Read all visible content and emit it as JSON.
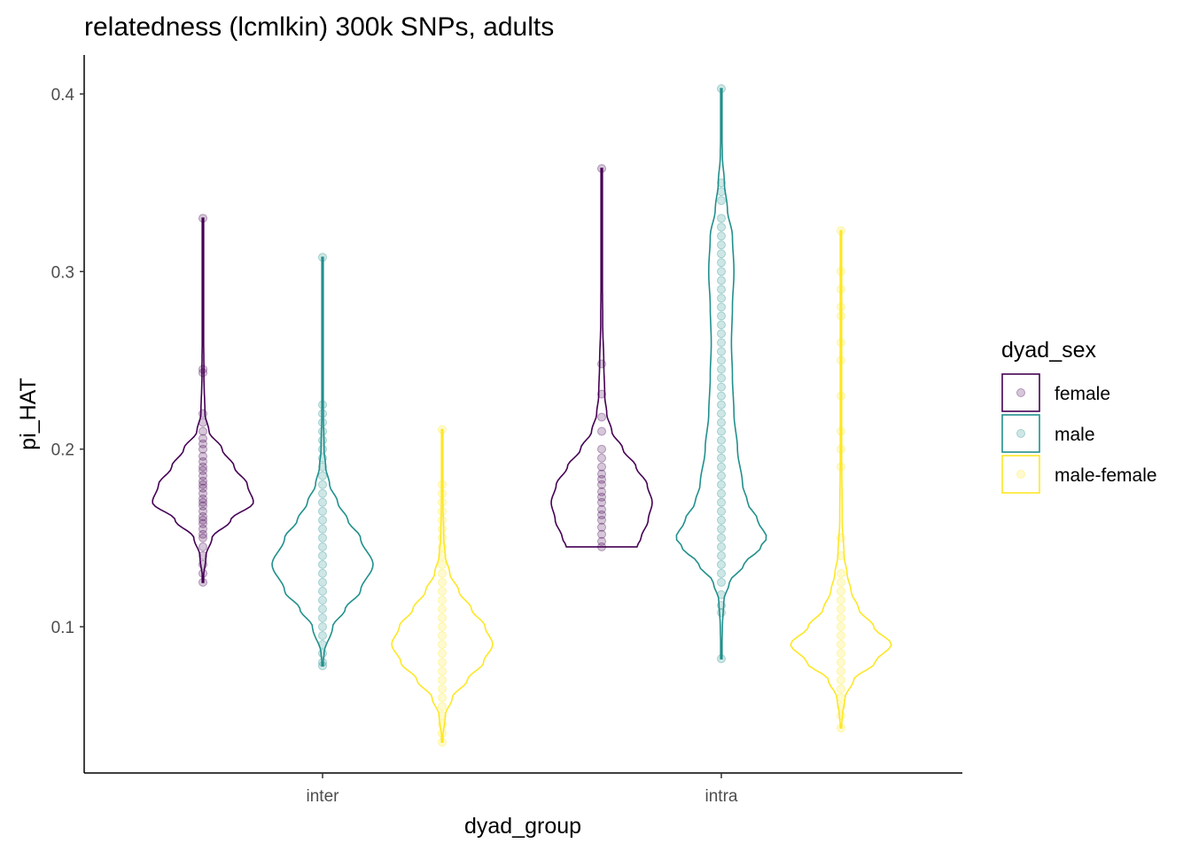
{
  "chart_data": {
    "type": "violin",
    "title": "relatedness (lcmlkin) 300k SNPs, adults",
    "xlabel": "dyad_group",
    "ylabel": "pi_HAT",
    "x_categories": [
      "inter",
      "intra"
    ],
    "y_ticks": [
      0.1,
      0.2,
      0.3,
      0.4
    ],
    "y_tick_labels": [
      "0.1",
      "0.2",
      "0.3",
      "0.4"
    ],
    "ylim": [
      0.03,
      0.42
    ],
    "grid": false,
    "legend": {
      "title": "dyad_sex",
      "position": "right",
      "entries": [
        {
          "label": "female",
          "color": "#440154"
        },
        {
          "label": "male",
          "color": "#21908C"
        },
        {
          "label": "male-female",
          "color": "#FDE725"
        }
      ]
    },
    "series": [
      {
        "group": "inter",
        "dyad_sex": "female",
        "color": "#440154",
        "min": 0.125,
        "max": 0.33,
        "profile": [
          [
            0.125,
            0.0
          ],
          [
            0.14,
            0.06
          ],
          [
            0.15,
            0.18
          ],
          [
            0.16,
            0.55
          ],
          [
            0.17,
            1.0
          ],
          [
            0.18,
            0.88
          ],
          [
            0.19,
            0.62
          ],
          [
            0.2,
            0.38
          ],
          [
            0.21,
            0.12
          ],
          [
            0.22,
            0.04
          ],
          [
            0.24,
            0.02
          ],
          [
            0.27,
            0.012
          ],
          [
            0.3,
            0.01
          ],
          [
            0.33,
            0.0
          ]
        ],
        "points": [
          0.125,
          0.13,
          0.135,
          0.14,
          0.145,
          0.15,
          0.152,
          0.155,
          0.158,
          0.16,
          0.162,
          0.165,
          0.168,
          0.17,
          0.172,
          0.175,
          0.178,
          0.18,
          0.182,
          0.185,
          0.188,
          0.19,
          0.193,
          0.196,
          0.2,
          0.203,
          0.206,
          0.21,
          0.215,
          0.22,
          0.243,
          0.245,
          0.33
        ]
      },
      {
        "group": "inter",
        "dyad_sex": "male",
        "color": "#21908C",
        "min": 0.078,
        "max": 0.308,
        "profile": [
          [
            0.078,
            0.0
          ],
          [
            0.085,
            0.03
          ],
          [
            0.1,
            0.2
          ],
          [
            0.11,
            0.45
          ],
          [
            0.12,
            0.75
          ],
          [
            0.135,
            1.0
          ],
          [
            0.15,
            0.75
          ],
          [
            0.16,
            0.5
          ],
          [
            0.17,
            0.3
          ],
          [
            0.18,
            0.14
          ],
          [
            0.19,
            0.06
          ],
          [
            0.2,
            0.03
          ],
          [
            0.22,
            0.015
          ],
          [
            0.26,
            0.01
          ],
          [
            0.308,
            0.0
          ]
        ],
        "points": [
          0.078,
          0.08,
          0.085,
          0.09,
          0.095,
          0.1,
          0.105,
          0.11,
          0.115,
          0.12,
          0.125,
          0.13,
          0.135,
          0.14,
          0.145,
          0.15,
          0.155,
          0.16,
          0.165,
          0.17,
          0.175,
          0.18,
          0.185,
          0.19,
          0.195,
          0.2,
          0.205,
          0.21,
          0.215,
          0.22,
          0.225,
          0.308
        ]
      },
      {
        "group": "inter",
        "dyad_sex": "male-female",
        "color": "#FDE725",
        "min": 0.035,
        "max": 0.211,
        "profile": [
          [
            0.035,
            0.0
          ],
          [
            0.05,
            0.06
          ],
          [
            0.06,
            0.2
          ],
          [
            0.07,
            0.5
          ],
          [
            0.08,
            0.82
          ],
          [
            0.09,
            1.0
          ],
          [
            0.1,
            0.85
          ],
          [
            0.11,
            0.58
          ],
          [
            0.12,
            0.33
          ],
          [
            0.13,
            0.15
          ],
          [
            0.14,
            0.06
          ],
          [
            0.15,
            0.03
          ],
          [
            0.17,
            0.015
          ],
          [
            0.19,
            0.01
          ],
          [
            0.211,
            0.0
          ]
        ],
        "points": [
          0.035,
          0.04,
          0.045,
          0.05,
          0.055,
          0.06,
          0.065,
          0.07,
          0.075,
          0.08,
          0.085,
          0.09,
          0.095,
          0.1,
          0.105,
          0.11,
          0.115,
          0.12,
          0.125,
          0.13,
          0.135,
          0.14,
          0.145,
          0.15,
          0.155,
          0.16,
          0.165,
          0.17,
          0.175,
          0.18,
          0.211
        ]
      },
      {
        "group": "intra",
        "dyad_sex": "female",
        "color": "#440154",
        "min": 0.145,
        "max": 0.358,
        "profile": [
          [
            0.145,
            0.7
          ],
          [
            0.15,
            0.78
          ],
          [
            0.16,
            0.92
          ],
          [
            0.17,
            1.0
          ],
          [
            0.18,
            0.9
          ],
          [
            0.19,
            0.68
          ],
          [
            0.2,
            0.42
          ],
          [
            0.21,
            0.2
          ],
          [
            0.22,
            0.1
          ],
          [
            0.23,
            0.06
          ],
          [
            0.25,
            0.04
          ],
          [
            0.27,
            0.02
          ],
          [
            0.3,
            0.012
          ],
          [
            0.34,
            0.01
          ],
          [
            0.358,
            0.0
          ]
        ],
        "points": [
          0.145,
          0.148,
          0.152,
          0.156,
          0.16,
          0.163,
          0.166,
          0.17,
          0.173,
          0.176,
          0.18,
          0.183,
          0.186,
          0.19,
          0.195,
          0.2,
          0.21,
          0.218,
          0.231,
          0.248,
          0.358
        ]
      },
      {
        "group": "intra",
        "dyad_sex": "male",
        "color": "#21908C",
        "min": 0.082,
        "max": 0.403,
        "profile": [
          [
            0.082,
            0.0
          ],
          [
            0.1,
            0.02
          ],
          [
            0.115,
            0.05
          ],
          [
            0.125,
            0.16
          ],
          [
            0.135,
            0.45
          ],
          [
            0.145,
            0.78
          ],
          [
            0.15,
            0.9
          ],
          [
            0.16,
            0.72
          ],
          [
            0.17,
            0.52
          ],
          [
            0.18,
            0.42
          ],
          [
            0.2,
            0.32
          ],
          [
            0.22,
            0.25
          ],
          [
            0.24,
            0.22
          ],
          [
            0.26,
            0.2
          ],
          [
            0.28,
            0.22
          ],
          [
            0.3,
            0.25
          ],
          [
            0.32,
            0.22
          ],
          [
            0.335,
            0.12
          ],
          [
            0.35,
            0.06
          ],
          [
            0.365,
            0.02
          ],
          [
            0.38,
            0.01
          ],
          [
            0.403,
            0.0
          ]
        ],
        "points": [
          0.082,
          0.108,
          0.112,
          0.118,
          0.125,
          0.13,
          0.135,
          0.14,
          0.145,
          0.15,
          0.155,
          0.16,
          0.165,
          0.17,
          0.175,
          0.18,
          0.185,
          0.19,
          0.195,
          0.2,
          0.205,
          0.21,
          0.215,
          0.22,
          0.225,
          0.23,
          0.235,
          0.24,
          0.245,
          0.25,
          0.255,
          0.26,
          0.265,
          0.27,
          0.275,
          0.28,
          0.285,
          0.29,
          0.295,
          0.3,
          0.305,
          0.31,
          0.315,
          0.32,
          0.325,
          0.33,
          0.34,
          0.345,
          0.35,
          0.403
        ]
      },
      {
        "group": "intra",
        "dyad_sex": "male-female",
        "color": "#FDE725",
        "min": 0.043,
        "max": 0.323,
        "profile": [
          [
            0.043,
            0.0
          ],
          [
            0.05,
            0.03
          ],
          [
            0.06,
            0.08
          ],
          [
            0.07,
            0.25
          ],
          [
            0.08,
            0.68
          ],
          [
            0.09,
            1.0
          ],
          [
            0.1,
            0.65
          ],
          [
            0.11,
            0.35
          ],
          [
            0.12,
            0.2
          ],
          [
            0.13,
            0.12
          ],
          [
            0.14,
            0.06
          ],
          [
            0.16,
            0.025
          ],
          [
            0.2,
            0.012
          ],
          [
            0.26,
            0.01
          ],
          [
            0.3,
            0.008
          ],
          [
            0.323,
            0.0
          ]
        ],
        "points": [
          0.043,
          0.05,
          0.055,
          0.06,
          0.065,
          0.07,
          0.075,
          0.08,
          0.085,
          0.09,
          0.095,
          0.1,
          0.105,
          0.11,
          0.115,
          0.12,
          0.125,
          0.13,
          0.14,
          0.15,
          0.19,
          0.2,
          0.21,
          0.23,
          0.25,
          0.26,
          0.275,
          0.28,
          0.29,
          0.3,
          0.323
        ]
      }
    ]
  }
}
